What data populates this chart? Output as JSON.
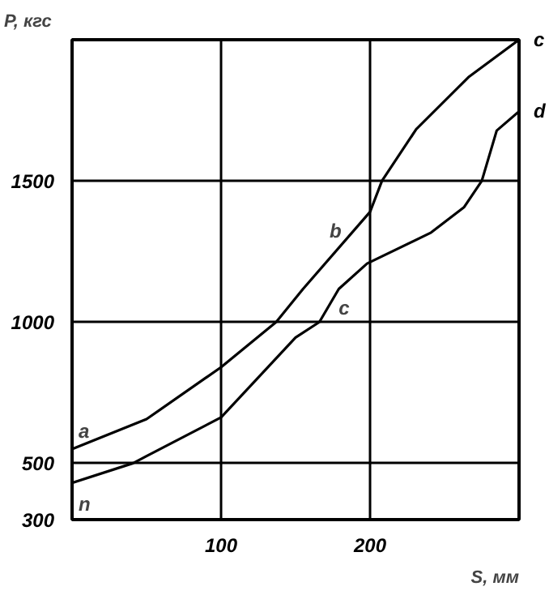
{
  "chart_data": {
    "type": "line",
    "xlabel": "S, мм",
    "ylabel": "P, кгс",
    "xlim": [
      0,
      300
    ],
    "ylim": [
      300,
      2000
    ],
    "xticks": [
      100,
      200
    ],
    "yticks": [
      300,
      500,
      1000,
      1500
    ],
    "grid": true,
    "marker": "none",
    "line_style": "solid",
    "series": [
      {
        "color": "#000000",
        "x": [
          0,
          50,
          100,
          137,
          155,
          200,
          208,
          231,
          266,
          300
        ],
        "values": [
          550,
          656,
          840,
          1000,
          1117,
          1390,
          1500,
          1683,
          1867,
          2000
        ]
      },
      {
        "color": "#000000",
        "x": [
          0,
          41,
          50,
          100,
          150,
          166,
          179,
          198,
          241,
          263,
          275,
          285,
          300
        ],
        "values": [
          430,
          500,
          525,
          662,
          945,
          1000,
          1117,
          1207,
          1317,
          1406,
          1500,
          1678,
          1746
        ]
      }
    ],
    "annotations": [
      {
        "text": "a",
        "x": 0,
        "y": 550
      },
      {
        "text": "n",
        "x": 0,
        "y": 430
      },
      {
        "text": "b",
        "x": 200,
        "y": 1390
      },
      {
        "text": "c",
        "x": 179,
        "y": 1117
      },
      {
        "text": "c",
        "x": 300,
        "y": 2000
      },
      {
        "text": "d",
        "x": 300,
        "y": 1746
      }
    ]
  }
}
